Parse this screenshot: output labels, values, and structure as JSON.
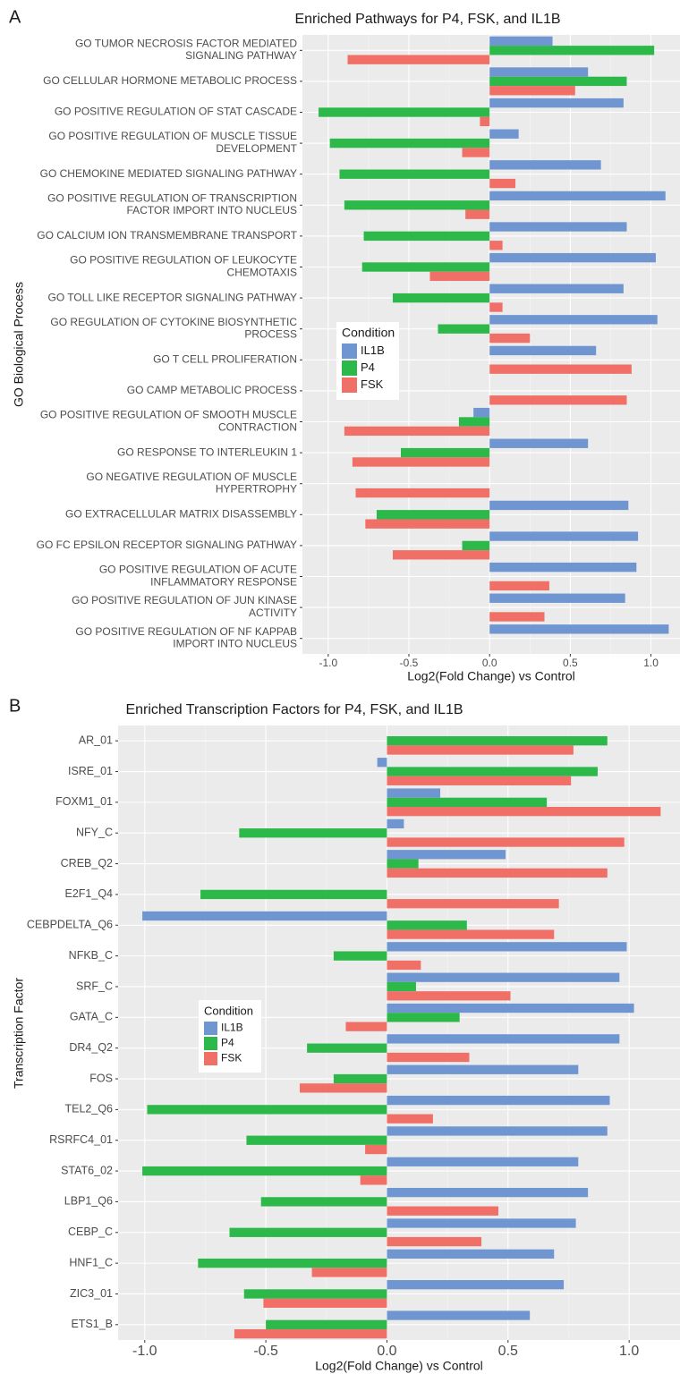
{
  "chart_data": [
    {
      "type": "bar",
      "orientation": "horizontal",
      "panel": "A",
      "title": "Enriched Pathways for P4, FSK, and IL1B",
      "xlabel": "Log2(Fold Change) vs Control",
      "ylabel": "GO Biological Process",
      "legend_title": "Condition",
      "grid": true,
      "xlim": [
        -1.16,
        1.18
      ],
      "xticks": [
        {
          "value": -1,
          "label": "-1.0"
        },
        -0.5,
        {
          "value": 0,
          "label": "0.0"
        },
        0.5,
        {
          "value": 1,
          "label": "1.0"
        }
      ],
      "categories": [
        "GO TUMOR NECROSIS FACTOR MEDIATED\nSIGNALING PATHWAY",
        "GO CELLULAR HORMONE METABOLIC PROCESS",
        "GO POSITIVE REGULATION OF STAT CASCADE",
        "GO POSITIVE REGULATION OF MUSCLE TISSUE\nDEVELOPMENT",
        "GO CHEMOKINE MEDIATED SIGNALING PATHWAY",
        "GO POSITIVE REGULATION OF TRANSCRIPTION\nFACTOR IMPORT INTO NUCLEUS",
        "GO CALCIUM ION TRANSMEMBRANE TRANSPORT",
        "GO POSITIVE REGULATION OF LEUKOCYTE\nCHEMOTAXIS",
        "GO TOLL LIKE RECEPTOR SIGNALING PATHWAY",
        "GO REGULATION OF CYTOKINE BIOSYNTHETIC\nPROCESS",
        "GO T CELL PROLIFERATION",
        "GO CAMP METABOLIC PROCESS",
        "GO POSITIVE REGULATION OF SMOOTH MUSCLE\nCONTRACTION",
        "GO RESPONSE TO INTERLEUKIN 1",
        "GO NEGATIVE REGULATION OF MUSCLE\nHYPERTROPHY",
        "GO EXTRACELLULAR MATRIX DISASSEMBLY",
        "GO FC EPSILON RECEPTOR SIGNALING PATHWAY",
        "GO POSITIVE REGULATION OF ACUTE\nINFLAMMATORY RESPONSE",
        "GO POSITIVE REGULATION OF JUN KINASE\nACTIVITY",
        "GO POSITIVE REGULATION OF NF KAPPAB\nIMPORT INTO NUCLEUS"
      ],
      "series": [
        {
          "name": "IL1B",
          "color": "#6f96d1",
          "values": [
            0.39,
            0.61,
            0.83,
            0.18,
            0.69,
            1.09,
            0.85,
            1.03,
            0.83,
            1.04,
            0.66,
            null,
            -0.1,
            0.61,
            null,
            0.86,
            0.92,
            0.91,
            0.84,
            1.11
          ]
        },
        {
          "name": "P4",
          "color": "#2db84a",
          "values": [
            1.02,
            0.85,
            -1.06,
            -0.99,
            -0.93,
            -0.9,
            -0.78,
            -0.79,
            -0.6,
            -0.32,
            null,
            null,
            -0.19,
            -0.55,
            null,
            -0.7,
            -0.17,
            null,
            null,
            null
          ]
        },
        {
          "name": "FSK",
          "color": "#f07068",
          "values": [
            -0.88,
            0.53,
            -0.06,
            -0.17,
            0.16,
            -0.15,
            0.08,
            -0.37,
            0.08,
            0.25,
            0.88,
            0.85,
            -0.9,
            -0.85,
            -0.83,
            -0.77,
            -0.6,
            0.37,
            0.34,
            null
          ]
        }
      ]
    },
    {
      "type": "bar",
      "orientation": "horizontal",
      "panel": "B",
      "title": "Enriched Transcription Factors for P4, FSK, and IL1B",
      "xlabel": "Log2(Fold Change) vs Control",
      "ylabel": "Transcription Factor",
      "legend_title": "Condition",
      "grid": true,
      "xlim": [
        -1.11,
        1.21
      ],
      "xticks": [
        {
          "value": -1,
          "label": "-1.0"
        },
        -0.5,
        {
          "value": 0,
          "label": "0.0"
        },
        0.5,
        {
          "value": 1,
          "label": "1.0"
        }
      ],
      "categories": [
        "AR_01",
        "ISRE_01",
        "FOXM1_01",
        "NFY_C",
        "CREB_Q2",
        "E2F1_Q4",
        "CEBPDELTA_Q6",
        "NFKB_C",
        "SRF_C",
        "GATA_C",
        "DR4_Q2",
        "FOS",
        "TEL2_Q6",
        "RSRFC4_01",
        "STAT6_02",
        "LBP1_Q6",
        "CEBP_C",
        "HNF1_C",
        "ZIC3_01",
        "ETS1_B"
      ],
      "series": [
        {
          "name": "IL1B",
          "color": "#6f96d1",
          "values": [
            null,
            -0.04,
            0.22,
            0.07,
            0.49,
            null,
            -1.01,
            0.99,
            0.96,
            1.02,
            0.96,
            0.79,
            0.92,
            0.91,
            0.79,
            0.83,
            0.78,
            0.69,
            0.73,
            0.59
          ]
        },
        {
          "name": "P4",
          "color": "#2db84a",
          "values": [
            0.91,
            0.87,
            0.66,
            -0.61,
            0.13,
            -0.77,
            0.33,
            -0.22,
            0.12,
            0.3,
            -0.33,
            -0.22,
            -0.99,
            -0.58,
            -1.01,
            -0.52,
            -0.65,
            -0.78,
            -0.59,
            -0.5
          ]
        },
        {
          "name": "FSK",
          "color": "#f07068",
          "values": [
            0.77,
            0.76,
            1.13,
            0.98,
            0.91,
            0.71,
            0.69,
            0.14,
            0.51,
            -0.17,
            0.34,
            -0.36,
            0.19,
            -0.09,
            -0.11,
            0.46,
            0.39,
            -0.31,
            -0.51,
            -0.63
          ]
        }
      ]
    }
  ]
}
